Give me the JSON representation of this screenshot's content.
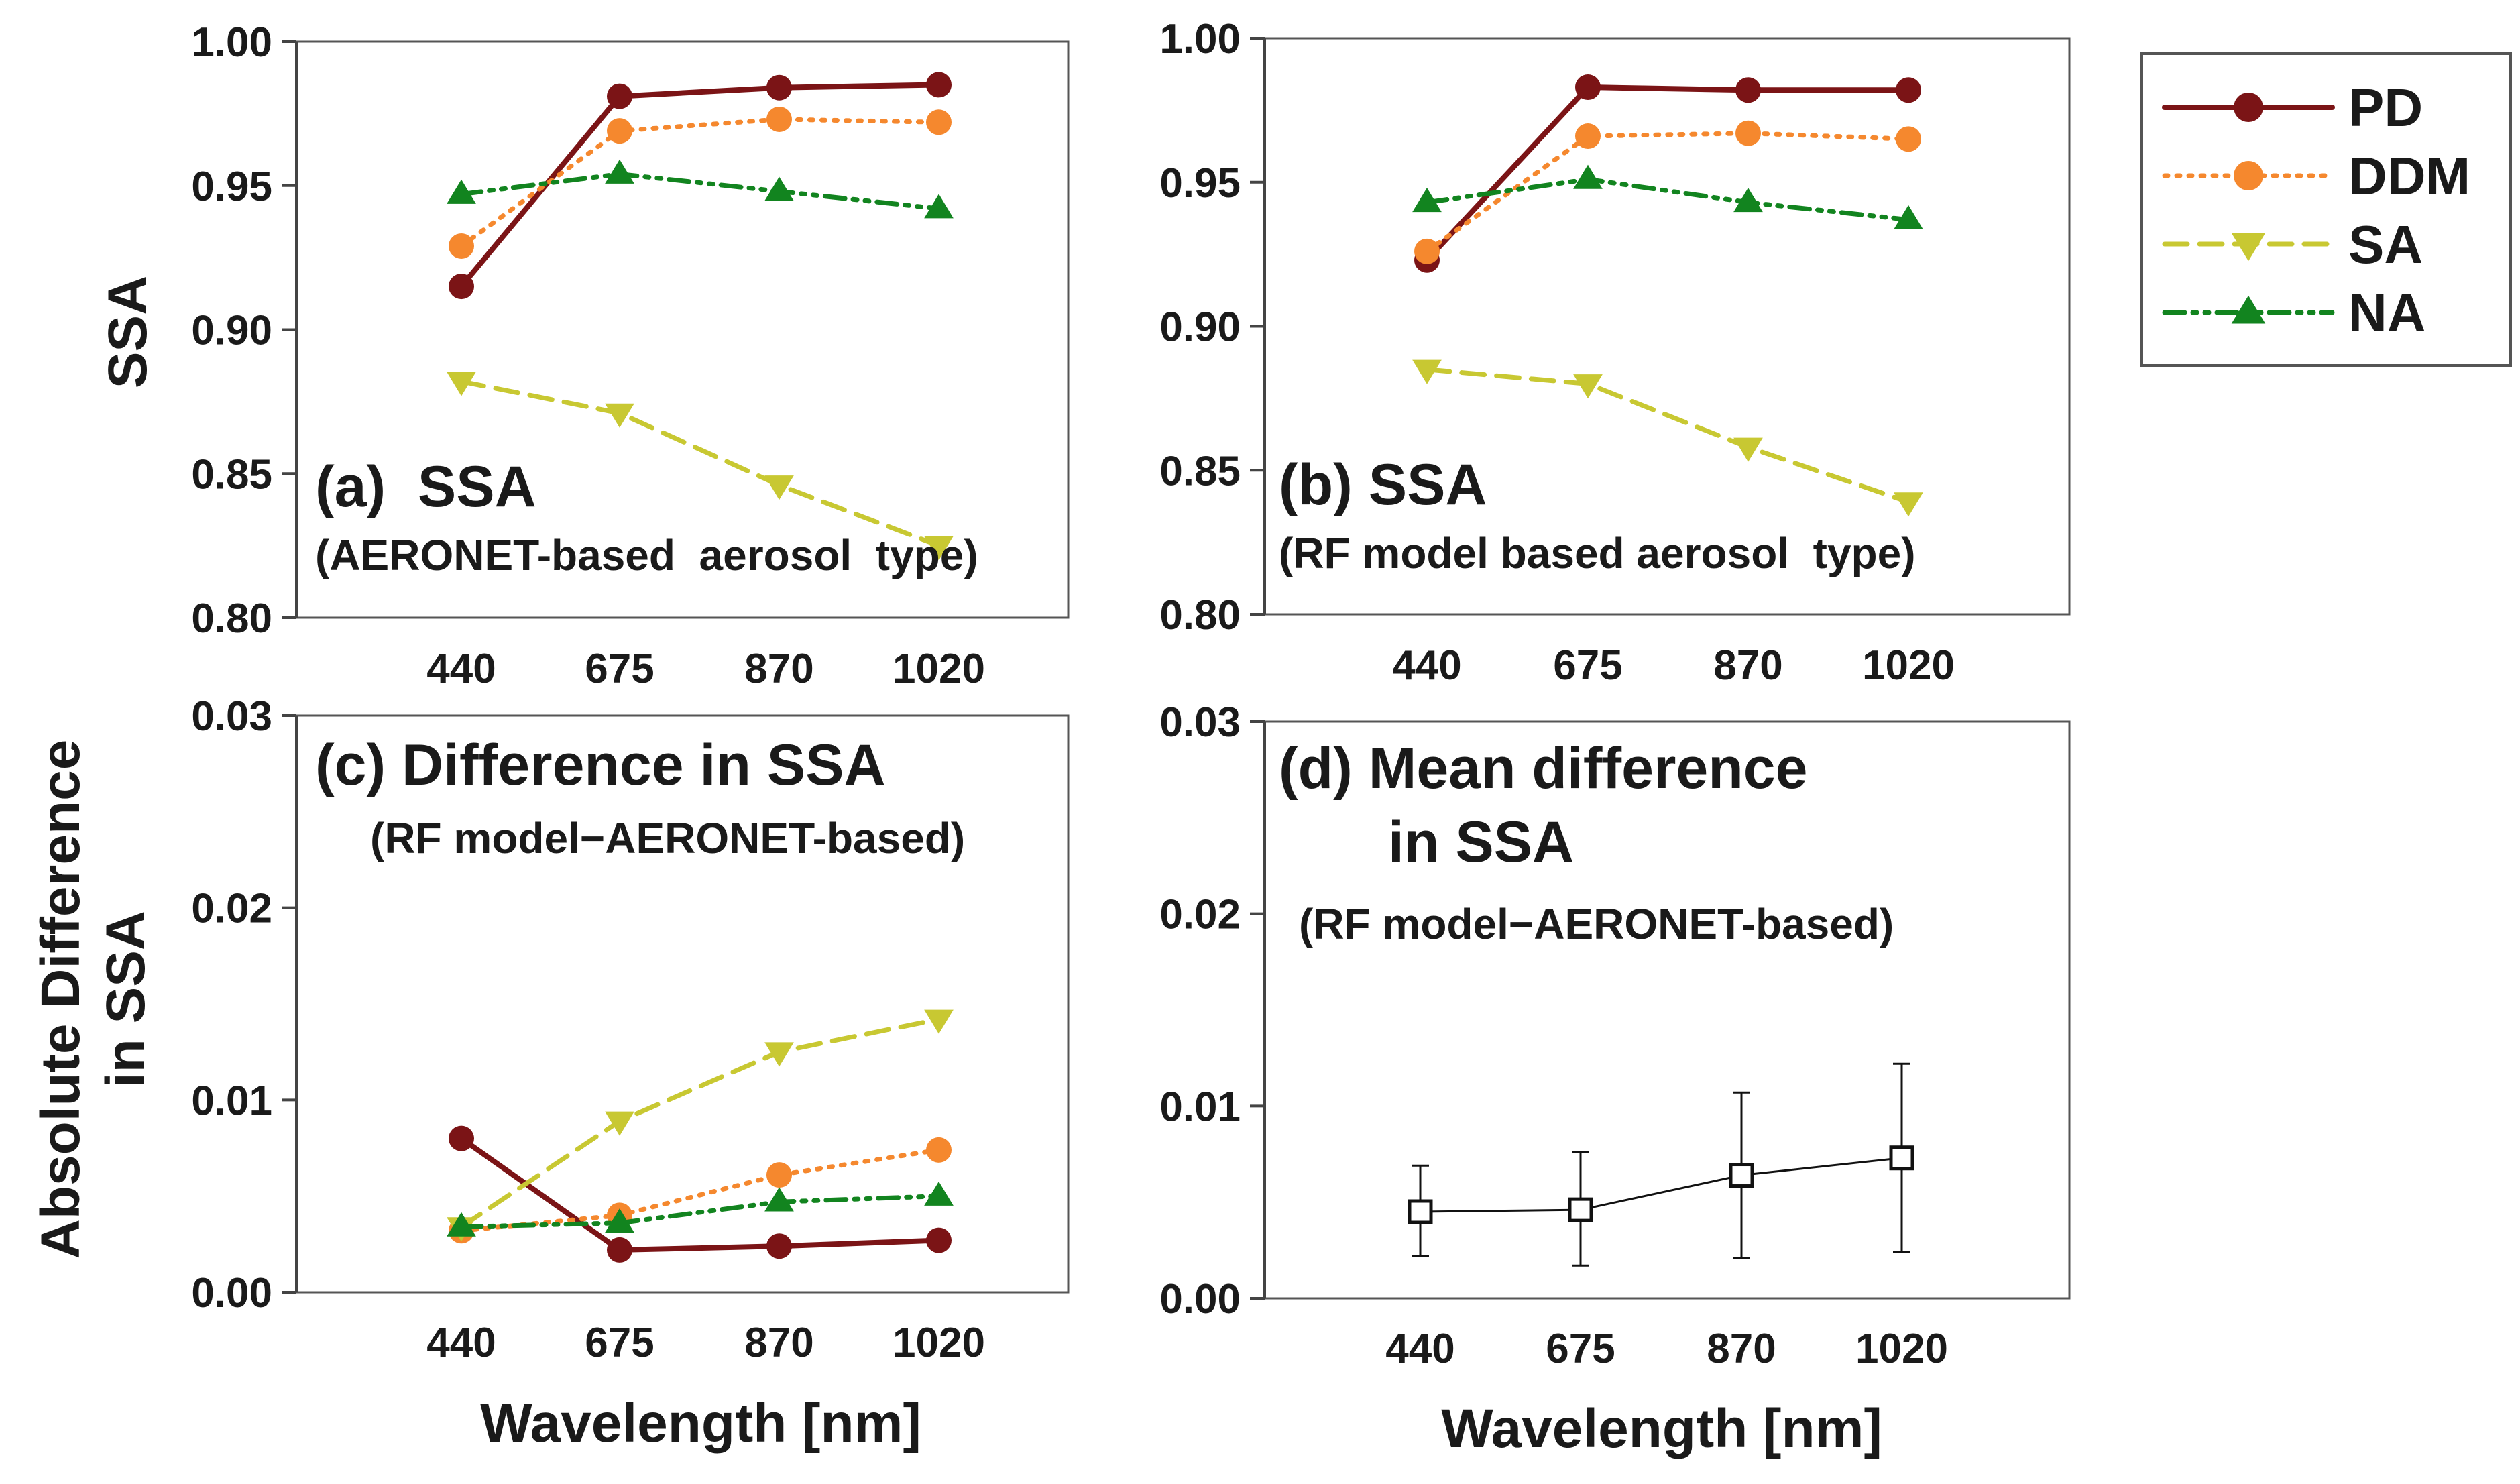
{
  "figure": {
    "ylabel_top": "SSA",
    "ylabel_bottom_line1": "Absolute Difference",
    "ylabel_bottom_line2": "in SSA",
    "xlabel": "Wavelength [nm]"
  },
  "legend": {
    "position": "top-right",
    "entries": [
      {
        "name": "PD",
        "color": "#7b1416",
        "marker": "circle",
        "dash": "solid"
      },
      {
        "name": "DDM",
        "color": "#f5882e",
        "marker": "circle",
        "dash": "dotted"
      },
      {
        "name": "SA",
        "color": "#c8c832",
        "marker": "triangle-down",
        "dash": "dashed"
      },
      {
        "name": "NA",
        "color": "#12841f",
        "marker": "triangle-up",
        "dash": "dashdotdot"
      }
    ]
  },
  "chart_data": [
    {
      "type": "line",
      "panel": "a",
      "title": "(a)  SSA",
      "subtitle": "(AERONET-based  aerosol  type)",
      "categories": [
        "440",
        "675",
        "870",
        "1020"
      ],
      "yticks": [
        "0.80",
        "0.85",
        "0.90",
        "0.95",
        "1.00"
      ],
      "ylim": [
        0.8,
        1.0
      ],
      "series": [
        {
          "name": "PD",
          "values": [
            0.915,
            0.981,
            0.984,
            0.985
          ]
        },
        {
          "name": "DDM",
          "values": [
            0.929,
            0.969,
            0.973,
            0.972
          ]
        },
        {
          "name": "SA",
          "values": [
            0.882,
            0.871,
            0.846,
            0.825
          ]
        },
        {
          "name": "NA",
          "values": [
            0.947,
            0.954,
            0.948,
            0.942
          ]
        }
      ]
    },
    {
      "type": "line",
      "panel": "b",
      "title": "(b) SSA",
      "subtitle": "(RF model based aerosol  type)",
      "categories": [
        "440",
        "675",
        "870",
        "1020"
      ],
      "yticks": [
        "0.80",
        "0.85",
        "0.90",
        "0.95",
        "1.00"
      ],
      "ylim": [
        0.8,
        1.0
      ],
      "series": [
        {
          "name": "PD",
          "values": [
            0.923,
            0.983,
            0.982,
            0.982
          ]
        },
        {
          "name": "DDM",
          "values": [
            0.926,
            0.966,
            0.967,
            0.965
          ]
        },
        {
          "name": "SA",
          "values": [
            0.885,
            0.88,
            0.858,
            0.839
          ]
        },
        {
          "name": "NA",
          "values": [
            0.943,
            0.951,
            0.943,
            0.937
          ]
        }
      ]
    },
    {
      "type": "line",
      "panel": "c",
      "title": "(c) Difference in SSA",
      "subtitle": "(RF model−AERONET-based)",
      "categories": [
        "440",
        "675",
        "870",
        "1020"
      ],
      "yticks": [
        "0.00",
        "0.01",
        "0.02",
        "0.03"
      ],
      "ylim": [
        0.0,
        0.03
      ],
      "series": [
        {
          "name": "PD",
          "values": [
            0.008,
            0.0022,
            0.0024,
            0.0027
          ]
        },
        {
          "name": "DDM",
          "values": [
            0.0032,
            0.004,
            0.0061,
            0.0074
          ]
        },
        {
          "name": "SA",
          "values": [
            0.0034,
            0.0089,
            0.0125,
            0.0142
          ]
        },
        {
          "name": "NA",
          "values": [
            0.0034,
            0.0036,
            0.0047,
            0.005
          ]
        }
      ]
    },
    {
      "type": "line",
      "panel": "d",
      "title_line1": "(d) Mean difference",
      "title_line2": "in SSA",
      "subtitle": "(RF model−AERONET-based)",
      "categories": [
        "440",
        "675",
        "870",
        "1020"
      ],
      "yticks": [
        "0.00",
        "0.01",
        "0.02",
        "0.03"
      ],
      "ylim": [
        0.0,
        0.03
      ],
      "series": [
        {
          "name": "Mean difference",
          "values": [
            0.0045,
            0.0046,
            0.0064,
            0.0073
          ],
          "error_low": [
            0.0022,
            0.0017,
            0.0021,
            0.0024
          ],
          "error_high": [
            0.0069,
            0.0076,
            0.0107,
            0.0122
          ]
        }
      ]
    }
  ]
}
